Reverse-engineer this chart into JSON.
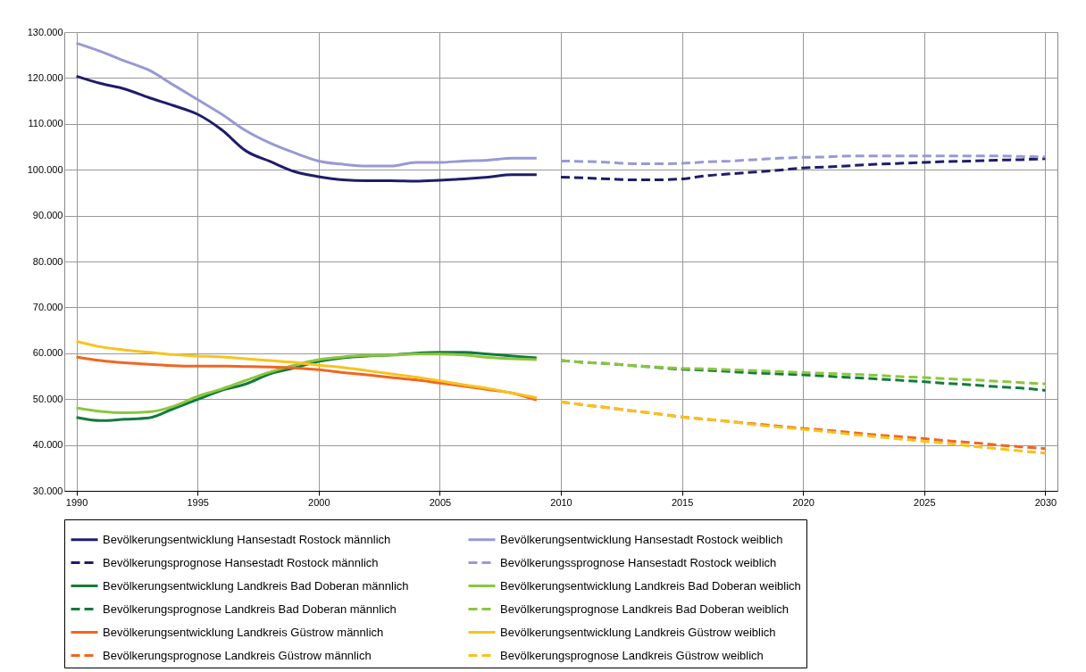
{
  "chart_data": {
    "type": "line",
    "xlim": [
      1989.5,
      2030.5
    ],
    "ylim": [
      30000,
      130000
    ],
    "xticks": [
      1990,
      1995,
      2000,
      2005,
      2010,
      2015,
      2020,
      2025,
      2030
    ],
    "yticks": [
      {
        "value": 30000,
        "label": "30.000"
      },
      {
        "value": 40000,
        "label": "40.000"
      },
      {
        "value": 50000,
        "label": "50.000"
      },
      {
        "value": 60000,
        "label": "60.000"
      },
      {
        "value": 70000,
        "label": "70.000"
      },
      {
        "value": 80000,
        "label": "80.000"
      },
      {
        "value": 90000,
        "label": "90.000"
      },
      {
        "value": 100000,
        "label": "100.000"
      },
      {
        "value": 110000,
        "label": "110.000"
      },
      {
        "value": 120000,
        "label": "120.000"
      },
      {
        "value": 130000,
        "label": "130.000"
      }
    ],
    "grid": true,
    "legend": "bottom",
    "series": [
      {
        "name": "Bevölkerungsentwicklung Hansestadt Rostock männlich",
        "color": "#1f1c6b",
        "line_style": "solid",
        "x": [
          1990,
          1991,
          1992,
          1993,
          1994,
          1995,
          1996,
          1997,
          1998,
          1999,
          2000,
          2001,
          2002,
          2003,
          2004,
          2005,
          2006,
          2007,
          2008,
          2009
        ],
        "values": [
          120400,
          118800,
          117600,
          115700,
          114000,
          112100,
          108700,
          104100,
          101800,
          99600,
          98500,
          97800,
          97600,
          97600,
          97500,
          97700,
          98000,
          98400,
          98900,
          98900
        ]
      },
      {
        "name": "Bevölkerungsentwicklung Hansestadt Rostock weiblich",
        "color": "#9999d4",
        "line_style": "solid",
        "x": [
          1990,
          1991,
          1992,
          1993,
          1994,
          1995,
          1996,
          1997,
          1998,
          1999,
          2000,
          2001,
          2002,
          2003,
          2004,
          2005,
          2006,
          2007,
          2008,
          2009
        ],
        "values": [
          127600,
          125800,
          123700,
          121700,
          118500,
          115300,
          112100,
          108500,
          105800,
          103700,
          101900,
          101200,
          100800,
          100800,
          101600,
          101600,
          101900,
          102100,
          102500,
          102500
        ]
      },
      {
        "name": "Bevölkerungsprognose Hansestadt Rostock männlich",
        "color": "#1f1c6b",
        "line_style": "dashed",
        "x": [
          2010,
          2011,
          2012,
          2013,
          2014,
          2015,
          2016,
          2017,
          2018,
          2019,
          2020,
          2021,
          2022,
          2023,
          2024,
          2025,
          2026,
          2027,
          2028,
          2029,
          2030
        ],
        "values": [
          98400,
          98200,
          98000,
          97800,
          97800,
          98000,
          98700,
          99100,
          99500,
          99900,
          100400,
          100600,
          100900,
          101200,
          101400,
          101600,
          101800,
          101900,
          102100,
          102200,
          102400
        ]
      },
      {
        "name": "Bevölkerungssprognose Hansestadt Rostock weiblich",
        "color": "#9999d4",
        "line_style": "dashed",
        "x": [
          2010,
          2011,
          2012,
          2013,
          2014,
          2015,
          2016,
          2017,
          2018,
          2019,
          2020,
          2021,
          2022,
          2023,
          2024,
          2025,
          2026,
          2027,
          2028,
          2029,
          2030
        ],
        "values": [
          101900,
          101800,
          101600,
          101300,
          101300,
          101400,
          101700,
          101900,
          102200,
          102500,
          102700,
          102800,
          103000,
          103000,
          103000,
          103000,
          103000,
          103000,
          103000,
          102900,
          102800
        ]
      },
      {
        "name": "Bevölkerungsentwicklung Landkreis Bad Doberan männlich",
        "color": "#137a3c",
        "line_style": "solid",
        "x": [
          1990,
          1991,
          1992,
          1993,
          1994,
          1995,
          1996,
          1997,
          1998,
          1999,
          2000,
          2001,
          2002,
          2003,
          2004,
          2005,
          2006,
          2007,
          2008,
          2009
        ],
        "values": [
          46000,
          45300,
          45600,
          45900,
          47900,
          49900,
          51900,
          53300,
          55500,
          56800,
          58200,
          59000,
          59400,
          59600,
          60000,
          60200,
          60200,
          59800,
          59400,
          59000
        ]
      },
      {
        "name": "Bevölkerungsentwicklung Landkreis Bad Doberan weiblich",
        "color": "#8cc63f",
        "line_style": "solid",
        "x": [
          1990,
          1991,
          1992,
          1993,
          1994,
          1995,
          1996,
          1997,
          1998,
          1999,
          2000,
          2001,
          2002,
          2003,
          2004,
          2005,
          2006,
          2007,
          2008,
          2009
        ],
        "values": [
          48100,
          47300,
          47000,
          47200,
          48400,
          50600,
          52200,
          54100,
          55900,
          57400,
          58600,
          59200,
          59500,
          59600,
          59800,
          59800,
          59600,
          59100,
          58800,
          58600
        ]
      },
      {
        "name": "Bevölkerungsprognose Landkreis Bad Doberan männlich",
        "color": "#137a3c",
        "line_style": "dashed",
        "x": [
          2010,
          2011,
          2012,
          2013,
          2014,
          2015,
          2016,
          2017,
          2018,
          2019,
          2020,
          2021,
          2022,
          2023,
          2024,
          2025,
          2026,
          2027,
          2028,
          2029,
          2030
        ],
        "values": [
          58400,
          58000,
          57700,
          57300,
          56900,
          56500,
          56300,
          56000,
          55700,
          55500,
          55300,
          55000,
          54700,
          54400,
          54100,
          53800,
          53400,
          53100,
          52700,
          52400,
          51900
        ]
      },
      {
        "name": "Bevölkerungsprognose Landkreis Bad Doberan weiblich",
        "color": "#8cc63f",
        "line_style": "dashed",
        "x": [
          2010,
          2011,
          2012,
          2013,
          2014,
          2015,
          2016,
          2017,
          2018,
          2019,
          2020,
          2021,
          2022,
          2023,
          2024,
          2025,
          2026,
          2027,
          2028,
          2029,
          2030
        ],
        "values": [
          58400,
          58000,
          57700,
          57300,
          57000,
          56700,
          56600,
          56400,
          56200,
          56000,
          55800,
          55600,
          55400,
          55200,
          54900,
          54700,
          54400,
          54200,
          53900,
          53600,
          53300
        ]
      },
      {
        "name": "Bevölkerungsentwicklung Landkreis Güstrow männlich",
        "color": "#f26522",
        "line_style": "solid",
        "x": [
          1990,
          1991,
          1992,
          1993,
          1994,
          1995,
          1996,
          1997,
          1998,
          1999,
          2000,
          2001,
          2002,
          2003,
          2004,
          2005,
          2006,
          2007,
          2008,
          2009
        ],
        "values": [
          59200,
          58400,
          57900,
          57600,
          57300,
          57200,
          57200,
          57100,
          57000,
          56800,
          56400,
          55800,
          55300,
          54700,
          54200,
          53500,
          52800,
          52100,
          51300,
          49800
        ]
      },
      {
        "name": "Bevölkerungsentwicklung Landkreis Güstrow weiblich",
        "color": "#f7c31f",
        "line_style": "solid",
        "x": [
          1990,
          1991,
          1992,
          1993,
          1994,
          1995,
          1996,
          1997,
          1998,
          1999,
          2000,
          2001,
          2002,
          2003,
          2004,
          2005,
          2006,
          2007,
          2008,
          2009
        ],
        "values": [
          62600,
          61400,
          60700,
          60200,
          59700,
          59400,
          59200,
          58800,
          58400,
          58000,
          57400,
          56900,
          56200,
          55500,
          54800,
          54000,
          53100,
          52300,
          51300,
          50300
        ]
      },
      {
        "name": "Bevölkerungsprognose Landkreis Güstrow männlich",
        "color": "#f26522",
        "line_style": "dashed",
        "x": [
          2010,
          2011,
          2012,
          2013,
          2014,
          2015,
          2016,
          2017,
          2018,
          2019,
          2020,
          2021,
          2022,
          2023,
          2024,
          2025,
          2026,
          2027,
          2028,
          2029,
          2030
        ],
        "values": [
          49400,
          48700,
          48100,
          47400,
          46800,
          46100,
          45600,
          45100,
          44600,
          44100,
          43600,
          43200,
          42700,
          42200,
          41800,
          41400,
          40900,
          40500,
          40000,
          39600,
          39200
        ]
      },
      {
        "name": "Bevölkerungsprognose Landkreis Güstrow weiblich",
        "color": "#f7c31f",
        "line_style": "dashed",
        "x": [
          2010,
          2011,
          2012,
          2013,
          2014,
          2015,
          2016,
          2017,
          2018,
          2019,
          2020,
          2021,
          2022,
          2023,
          2024,
          2025,
          2026,
          2027,
          2028,
          2029,
          2030
        ],
        "values": [
          49400,
          48700,
          48100,
          47400,
          46800,
          46100,
          45600,
          45100,
          44400,
          43900,
          43400,
          42900,
          42300,
          41800,
          41300,
          40800,
          40300,
          39700,
          39200,
          38700,
          38200
        ]
      }
    ]
  }
}
